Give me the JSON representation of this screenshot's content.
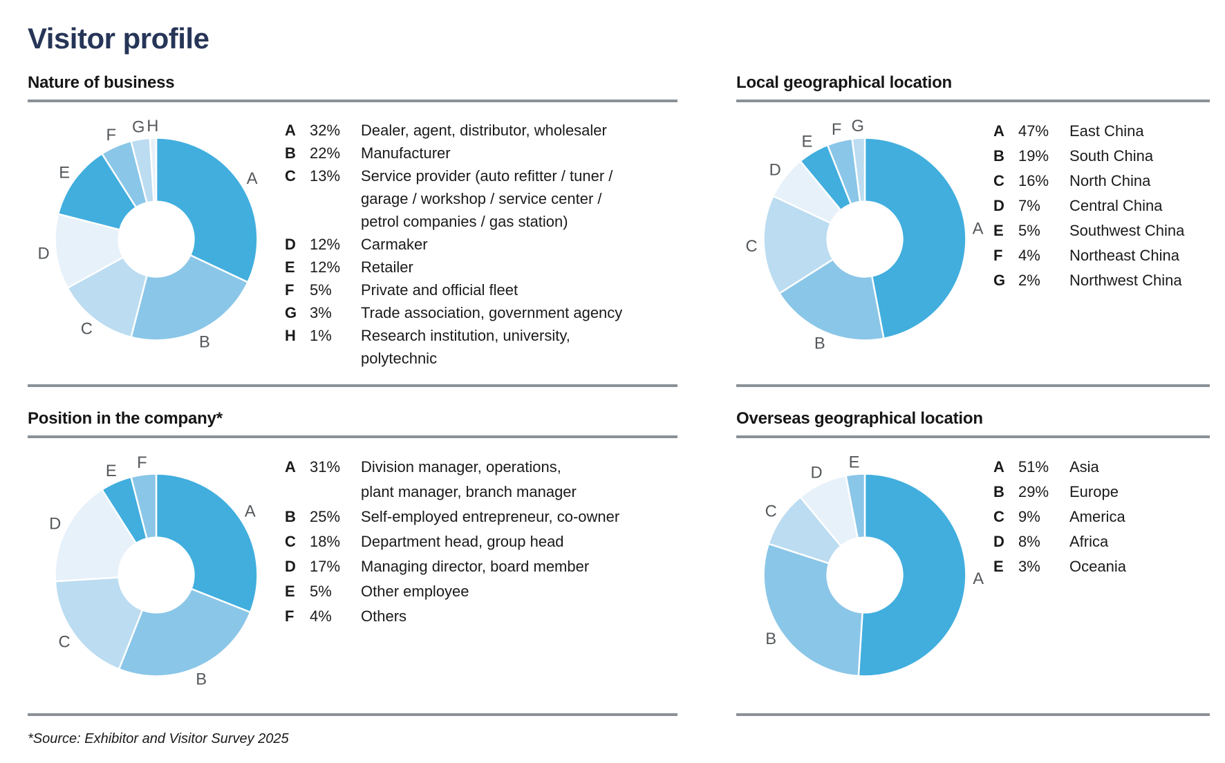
{
  "page": {
    "title": "Visitor profile",
    "footnote": "*Source: Exhibitor and Visitor Survey 2025"
  },
  "palette": [
    "#41aede",
    "#8ac6e8",
    "#bbdcf1",
    "#e7f1fa"
  ],
  "donut_label_color": "#54585b",
  "title_color": "#263557",
  "rule_color": "#8a9197",
  "chart_data": [
    {
      "type": "pie",
      "donut": true,
      "title": "Nature of business",
      "legend_position": "right",
      "start_angle_deg": 0,
      "direction": "clockwise",
      "hole_ratio": 0.37,
      "labels": [
        "A",
        "B",
        "C",
        "D",
        "E",
        "F",
        "G",
        "H"
      ],
      "values": [
        32,
        22,
        13,
        12,
        12,
        5,
        3,
        1
      ],
      "display_pcts": [
        "32%",
        "22%",
        "13%",
        "12%",
        "12%",
        "5%",
        "3%",
        "1%"
      ],
      "categories": [
        "Dealer, agent, distributor, wholesaler",
        "Manufacturer",
        "Service provider (auto refitter / tuner /\ngarage / workshop / service center /\npetrol companies / gas station)",
        "Carmaker",
        "Retailer",
        "Private and official fleet",
        "Trade association, government agency",
        "Research institution, university,\npolytechnic"
      ],
      "shades": [
        0,
        1,
        2,
        3,
        0,
        1,
        2,
        3
      ]
    },
    {
      "type": "pie",
      "donut": true,
      "title": "Local geographical location",
      "legend_position": "right",
      "start_angle_deg": 0,
      "direction": "clockwise",
      "hole_ratio": 0.37,
      "labels": [
        "A",
        "B",
        "C",
        "D",
        "E",
        "F",
        "G"
      ],
      "values": [
        47,
        19,
        16,
        7,
        5,
        4,
        2
      ],
      "display_pcts": [
        "47%",
        "19%",
        "16%",
        "7%",
        "5%",
        "4%",
        "2%"
      ],
      "categories": [
        "East China",
        "South China",
        "North China",
        "Central China",
        "Southwest China",
        "Northeast China",
        "Northwest China"
      ],
      "shades": [
        0,
        1,
        2,
        3,
        0,
        1,
        2
      ]
    },
    {
      "type": "pie",
      "donut": true,
      "title": "Position in the company*",
      "legend_position": "right",
      "start_angle_deg": 0,
      "direction": "clockwise",
      "hole_ratio": 0.37,
      "labels": [
        "A",
        "B",
        "C",
        "D",
        "E",
        "F"
      ],
      "values": [
        31,
        25,
        18,
        17,
        5,
        4
      ],
      "display_pcts": [
        "31%",
        "25%",
        "18%",
        "17%",
        "5%",
        "4%"
      ],
      "categories": [
        "Division manager, operations,\nplant manager, branch manager",
        "Self-employed entrepreneur, co-owner",
        "Department head, group head",
        "Managing director, board member",
        "Other employee",
        "Others"
      ],
      "shades": [
        0,
        1,
        2,
        3,
        0,
        1
      ]
    },
    {
      "type": "pie",
      "donut": true,
      "title": "Overseas geographical location",
      "legend_position": "right",
      "start_angle_deg": 0,
      "direction": "clockwise",
      "hole_ratio": 0.37,
      "labels": [
        "A",
        "B",
        "C",
        "D",
        "E"
      ],
      "values": [
        51,
        29,
        9,
        8,
        3
      ],
      "display_pcts": [
        "51%",
        "29%",
        "9%",
        "8%",
        "3%"
      ],
      "categories": [
        "Asia",
        "Europe",
        "America",
        "Africa",
        "Oceania"
      ],
      "shades": [
        0,
        1,
        2,
        3,
        1
      ]
    }
  ]
}
